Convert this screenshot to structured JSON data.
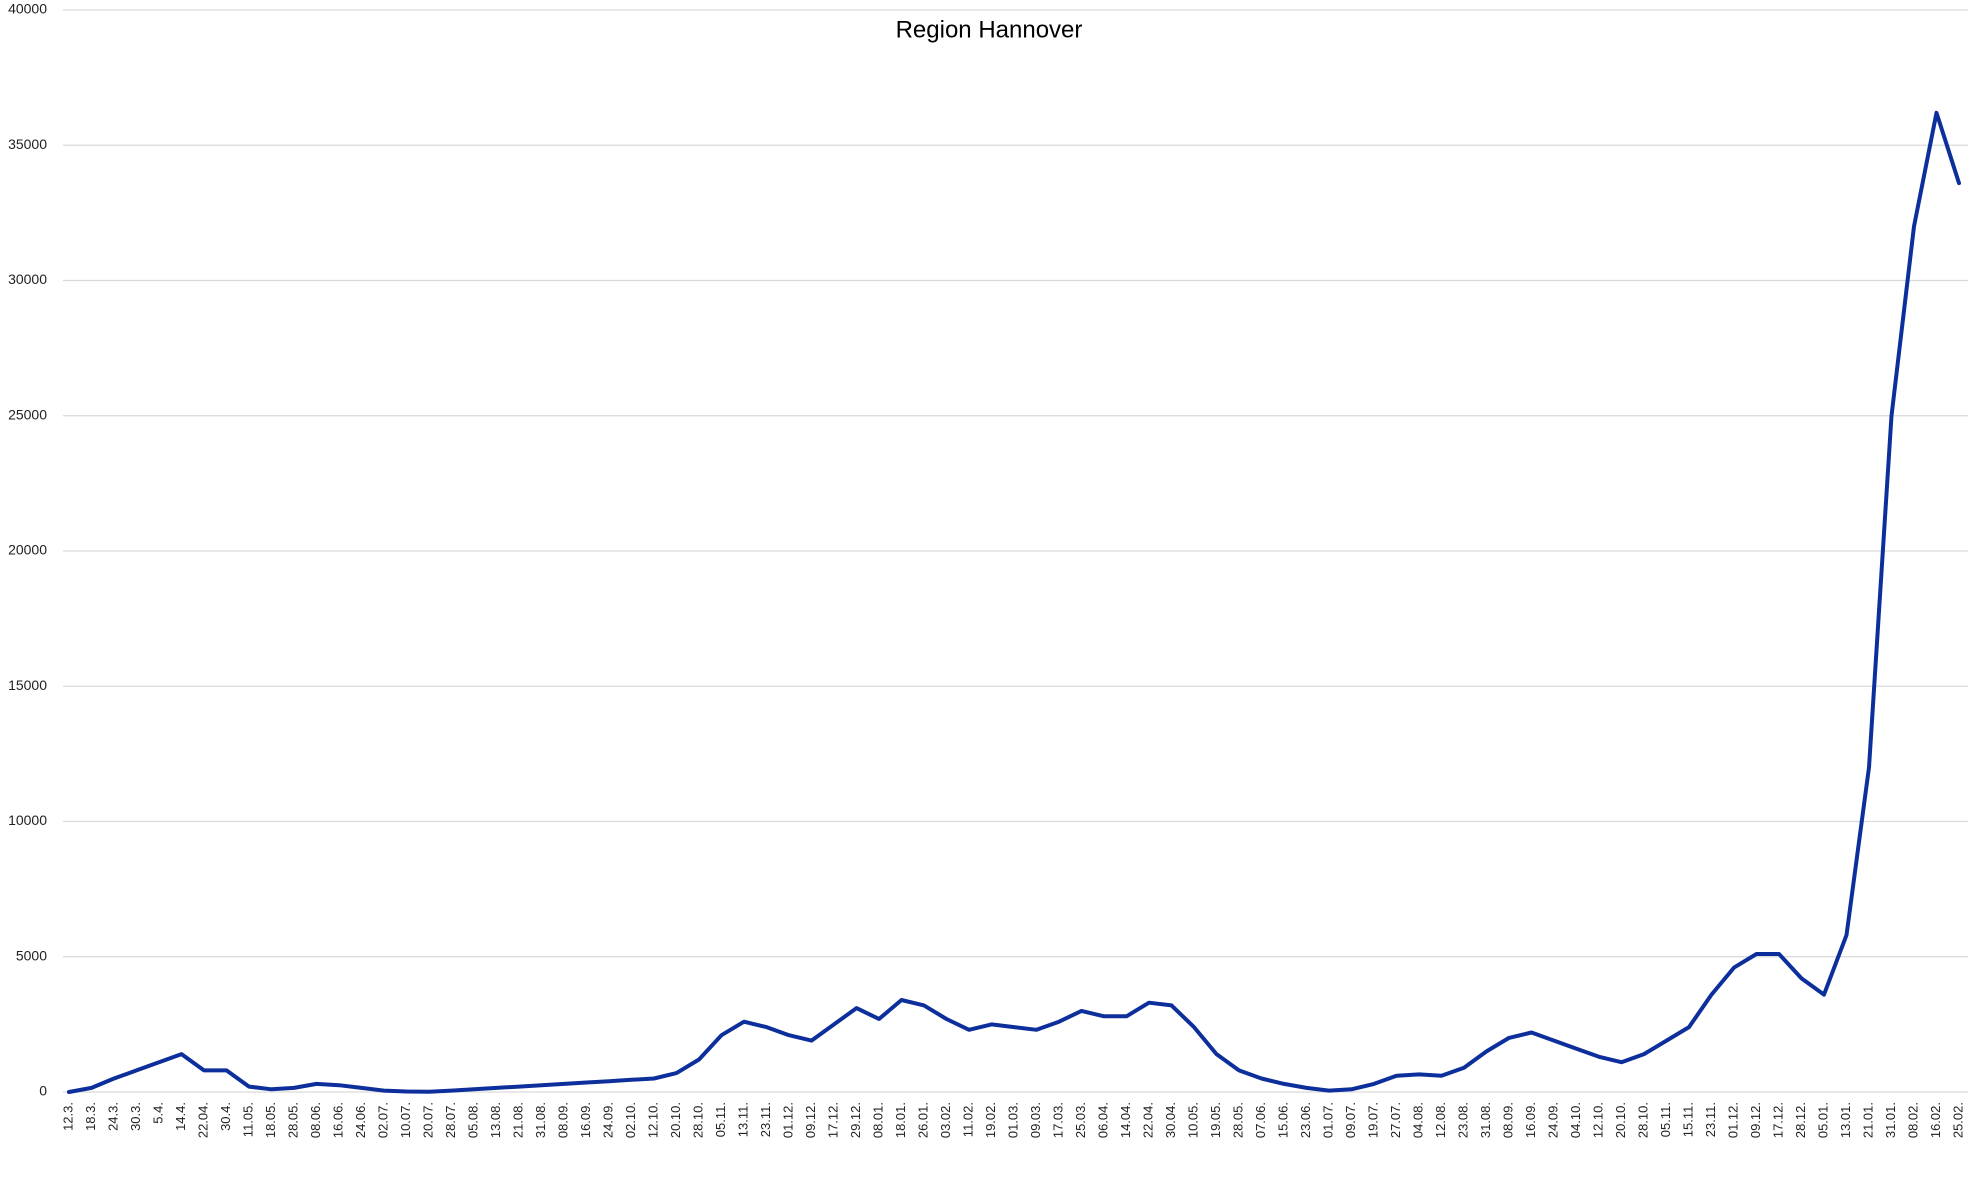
{
  "chart_data": {
    "type": "line",
    "title": "Region Hannover",
    "categories": [
      "12.3.",
      "18.3.",
      "24.3.",
      "30.3.",
      "5.4.",
      "14.4.",
      "22.04.",
      "30.4.",
      "11.05.",
      "18.05.",
      "28.05.",
      "08.06.",
      "16.06.",
      "24.06.",
      "02.07.",
      "10.07.",
      "20.07.",
      "28.07.",
      "05.08.",
      "13.08.",
      "21.08.",
      "31.08.",
      "08.09.",
      "16.09.",
      "24.09.",
      "02.10.",
      "12.10.",
      "20.10.",
      "28.10.",
      "05.11.",
      "13.11.",
      "23.11.",
      "01.12.",
      "09.12.",
      "17.12.",
      "29.12.",
      "08.01.",
      "18.01.",
      "26.01.",
      "03.02.",
      "11.02.",
      "19.02.",
      "01.03.",
      "09.03.",
      "17.03.",
      "25.03.",
      "06.04.",
      "14.04.",
      "22.04.",
      "30.04.",
      "10.05.",
      "19.05.",
      "28.05.",
      "07.06.",
      "15.06.",
      "23.06.",
      "01.07.",
      "09.07.",
      "19.07.",
      "27.07.",
      "04.08.",
      "12.08.",
      "23.08.",
      "31.08.",
      "08.09.",
      "16.09.",
      "24.09.",
      "04.10.",
      "12.10.",
      "20.10.",
      "28.10.",
      "05.11.",
      "15.11.",
      "23.11.",
      "01.12.",
      "09.12.",
      "17.12.",
      "28.12.",
      "05.01.",
      "13.01.",
      "21.01.",
      "31.01.",
      "08.02.",
      "16.02.",
      "25.02."
    ],
    "series": [
      {
        "color": "#0d2f9c",
        "values": [
          0,
          150,
          500,
          800,
          1100,
          1400,
          800,
          800,
          200,
          100,
          150,
          300,
          250,
          150,
          50,
          20,
          10,
          50,
          100,
          150,
          200,
          250,
          300,
          350,
          400,
          450,
          500,
          700,
          1200,
          2100,
          2600,
          2400,
          2100,
          1900,
          2500,
          3100,
          2700,
          3400,
          3200,
          2700,
          2300,
          2500,
          2400,
          2300,
          2600,
          3000,
          2800,
          2800,
          3300,
          3200,
          2400,
          1400,
          800,
          500,
          300,
          150,
          50,
          100,
          300,
          600,
          650,
          600,
          900,
          1500,
          2000,
          2200,
          1900,
          1600,
          1300,
          1100,
          1400,
          1900,
          2400,
          3600,
          4600,
          5100,
          5100,
          4200,
          3600,
          5800,
          12000,
          25000,
          32000,
          36200,
          33600
        ]
      }
    ],
    "ylim": [
      0,
      40000
    ],
    "yticks": [
      0,
      5000,
      10000,
      15000,
      20000,
      25000,
      30000,
      35000,
      40000
    ],
    "grid": true
  }
}
